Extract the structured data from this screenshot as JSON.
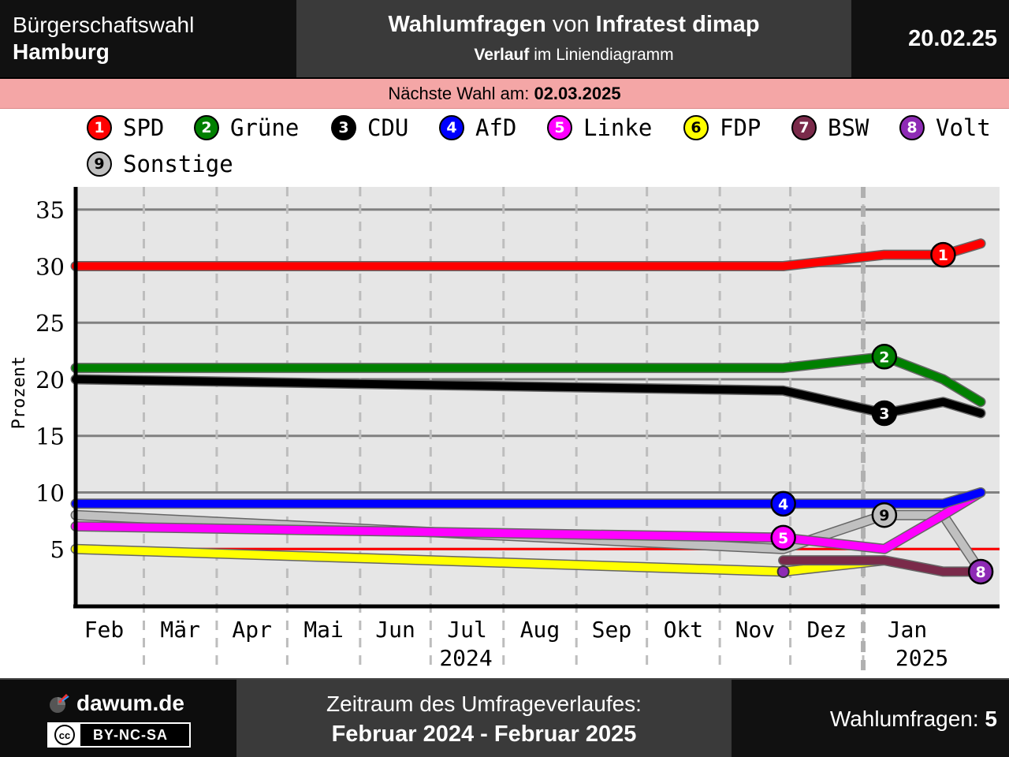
{
  "header": {
    "election_line1": "Bürgerschaftswahl",
    "election_line2": "Hamburg",
    "title_bold1": "Wahlumfragen",
    "title_mid": " von ",
    "title_bold2": "Infratest dimap",
    "subtitle_bold": "Verlauf",
    "subtitle_rest": " im Liniendiagramm",
    "date": "20.02.25"
  },
  "next_election": {
    "label": "Nächste Wahl am: ",
    "date": "02.03.2025"
  },
  "footer": {
    "brand": "dawum.de",
    "license_cc": "cc",
    "license": "BY-NC-SA",
    "period_label": "Zeitraum des Umfrageverlaufes:",
    "period": "Februar 2024 - Februar 2025",
    "polls_label": "Wahlumfragen: ",
    "polls_count": "5"
  },
  "chart_data": {
    "type": "line",
    "xlabel": "",
    "ylabel": "Prozent",
    "ylim": [
      0,
      37
    ],
    "xlim": [
      "2024-02-01",
      "2025-02-28"
    ],
    "y_ticks": [
      "5",
      "10",
      "15",
      "20",
      "25",
      "30",
      "35"
    ],
    "y_tick_values": [
      5,
      10,
      15,
      20,
      25,
      30,
      35
    ],
    "x_ticks": [
      {
        "label": "Feb",
        "date": "2024-02-01"
      },
      {
        "label": "Mär",
        "date": "2024-03-01"
      },
      {
        "label": "Apr",
        "date": "2024-04-01"
      },
      {
        "label": "Mai",
        "date": "2024-05-01"
      },
      {
        "label": "Jun",
        "date": "2024-06-01"
      },
      {
        "label": "Jul",
        "date": "2024-07-01"
      },
      {
        "label": "Aug",
        "date": "2024-08-01"
      },
      {
        "label": "Sep",
        "date": "2024-09-01"
      },
      {
        "label": "Okt",
        "date": "2024-10-01"
      },
      {
        "label": "Nov",
        "date": "2024-11-01"
      },
      {
        "label": "Dez",
        "date": "2024-12-01"
      },
      {
        "label": "Jan",
        "date": "2025-01-01"
      }
    ],
    "year_labels": [
      {
        "label": "2024",
        "date": "2024-07-16"
      },
      {
        "label": "2025",
        "date": "2025-01-26"
      }
    ],
    "year_divider": "2025-01-01",
    "threshold": 5,
    "grid": true,
    "legend_position": "top",
    "series": [
      {
        "id": "1",
        "name": "SPD",
        "color": "#ff0000",
        "badge_text": "#ffffff",
        "dates": [
          "2024-02-01",
          "2024-11-28",
          "2025-01-10",
          "2025-02-04",
          "2025-02-20"
        ],
        "values": [
          30,
          30,
          31,
          31,
          32
        ],
        "marker": {
          "date": "2025-02-04",
          "value": 31
        }
      },
      {
        "id": "2",
        "name": "Grüne",
        "color": "#008000",
        "badge_text": "#ffffff",
        "dates": [
          "2024-02-01",
          "2024-11-28",
          "2025-01-10",
          "2025-02-04",
          "2025-02-20"
        ],
        "values": [
          21,
          21,
          22,
          20,
          18
        ],
        "marker": {
          "date": "2025-01-10",
          "value": 22
        }
      },
      {
        "id": "3",
        "name": "CDU",
        "color": "#000000",
        "badge_text": "#ffffff",
        "dates": [
          "2024-02-01",
          "2024-11-28",
          "2025-01-10",
          "2025-02-04",
          "2025-02-20"
        ],
        "values": [
          20,
          19,
          17,
          18,
          17
        ],
        "marker": {
          "date": "2025-01-10",
          "value": 17
        }
      },
      {
        "id": "4",
        "name": "AfD",
        "color": "#0000ff",
        "badge_text": "#ffffff",
        "dates": [
          "2024-02-01",
          "2024-11-28",
          "2025-01-10",
          "2025-02-04",
          "2025-02-20"
        ],
        "values": [
          9,
          9,
          9,
          9,
          10
        ],
        "marker": {
          "date": "2024-11-28",
          "value": 9
        }
      },
      {
        "id": "5",
        "name": "Linke",
        "color": "#ff00ff",
        "badge_text": "#ffffff",
        "dates": [
          "2024-02-01",
          "2024-11-28",
          "2025-01-10",
          "2025-02-04",
          "2025-02-20"
        ],
        "values": [
          7,
          6,
          5,
          8,
          10
        ],
        "marker": {
          "date": "2024-11-28",
          "value": 6
        }
      },
      {
        "id": "6",
        "name": "FDP",
        "color": "#ffff00",
        "badge_text": "#000000",
        "dates": [
          "2024-02-01",
          "2024-11-28",
          "2025-01-10"
        ],
        "values": [
          5,
          3,
          4
        ],
        "marker": null
      },
      {
        "id": "7",
        "name": "BSW",
        "color": "#7a2a4a",
        "badge_text": "#ffffff",
        "dates": [
          "2024-11-28",
          "2025-01-10",
          "2025-02-04",
          "2025-02-20"
        ],
        "values": [
          4,
          4,
          3,
          3
        ],
        "marker": null
      },
      {
        "id": "8",
        "name": "Volt",
        "color": "#8e2bb5",
        "badge_text": "#ffffff",
        "dates": [
          "2024-11-28"
        ],
        "values": [
          3
        ],
        "marker": {
          "date": "2025-02-20",
          "value": 3
        }
      },
      {
        "id": "9",
        "name": "Sonstige",
        "color": "#c0c0c0",
        "badge_text": "#000000",
        "dates": [
          "2024-02-01",
          "2024-11-28",
          "2025-01-10",
          "2025-02-04",
          "2025-02-20"
        ],
        "values": [
          8,
          5,
          8,
          8,
          3
        ],
        "marker": {
          "date": "2025-01-10",
          "value": 8
        }
      }
    ]
  }
}
